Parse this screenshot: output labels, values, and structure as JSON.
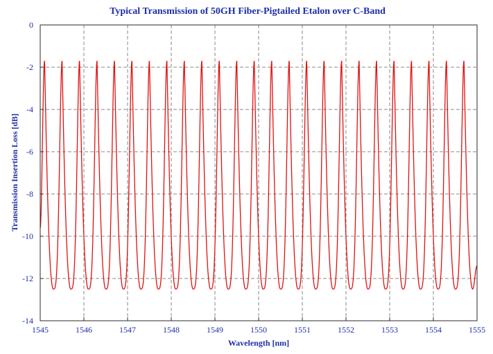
{
  "chart_data": {
    "type": "line",
    "title": "Typical Transmission of 50GH Fiber-Pigtailed Etalon over C-Band",
    "xlabel": "Wavelength [nm]",
    "ylabel": "Transmission Insertion Loss [dB]",
    "xlim": [
      1545,
      1555
    ],
    "ylim": [
      -14,
      0
    ],
    "xticks": [
      "1545",
      "1546",
      "1547",
      "1548",
      "1549",
      "1550",
      "1551",
      "1552",
      "1553",
      "1554",
      "1555"
    ],
    "yticks": [
      "0",
      "-2",
      "-4",
      "-6",
      "-8",
      "-10",
      "-12",
      "-14"
    ],
    "grid": true,
    "series": [
      {
        "color": "#e01010",
        "peak_db": -1.7,
        "trough_db": -12.5,
        "peak_wavelengths_nm": [
          1545.1,
          1545.5,
          1545.9,
          1546.3,
          1546.7,
          1547.1,
          1547.5,
          1547.9,
          1548.3,
          1548.7,
          1549.1,
          1549.5,
          1549.9,
          1550.3,
          1550.7,
          1551.1,
          1551.5,
          1551.9,
          1552.3,
          1552.7,
          1553.1,
          1553.5,
          1553.9,
          1554.3,
          1554.7
        ],
        "trough_wavelengths_nm": [
          1545.3,
          1545.7,
          1546.1,
          1546.5,
          1546.9,
          1547.3,
          1547.7,
          1548.1,
          1548.5,
          1548.9,
          1549.3,
          1549.7,
          1550.1,
          1550.5,
          1550.9,
          1551.3,
          1551.7,
          1552.1,
          1552.5,
          1552.9,
          1553.3,
          1553.7,
          1554.1,
          1554.5,
          1554.9
        ],
        "start": [
          1545.0,
          -9.6
        ],
        "end": [
          1555.0,
          -11.4
        ]
      }
    ]
  }
}
